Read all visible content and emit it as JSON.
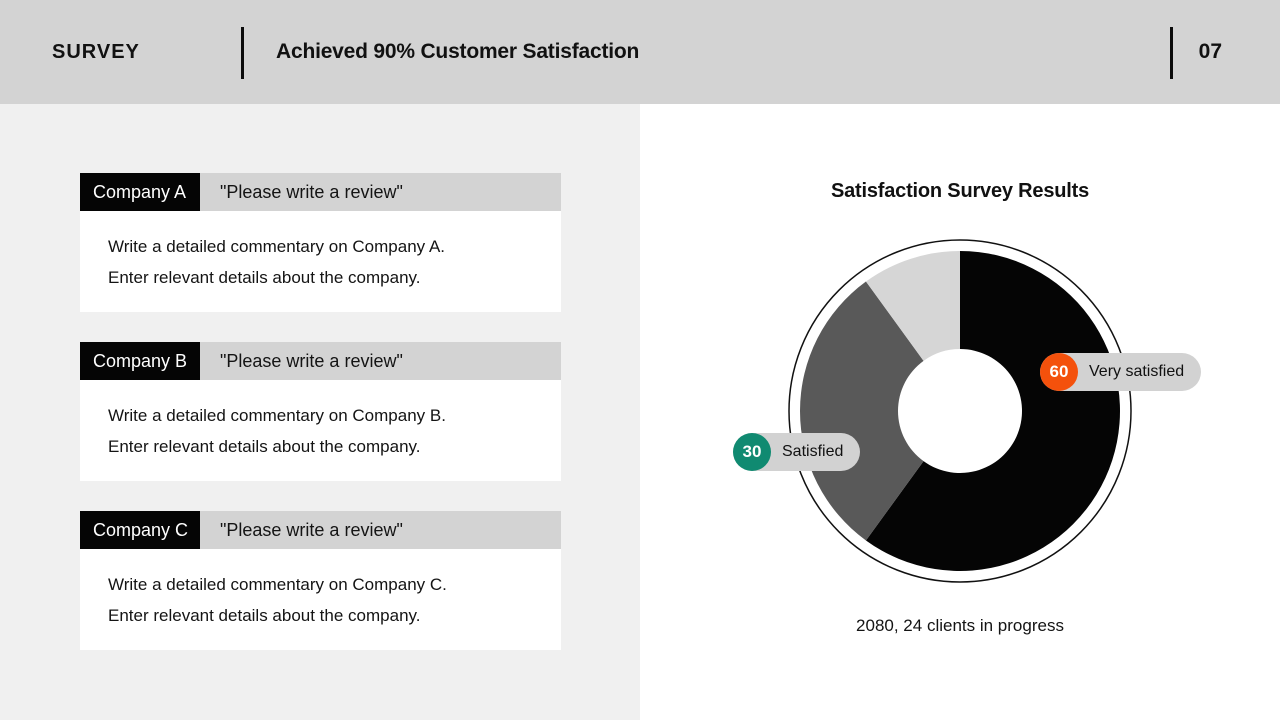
{
  "header": {
    "kicker": "SURVEY",
    "title": "Achieved 90% Customer Satisfaction",
    "page_number": "07"
  },
  "cards": [
    {
      "tab_label": "Company A",
      "prompt": "\"Please write a review\"",
      "body_line1": "Write a detailed commentary on Company A.",
      "body_line2": "Enter relevant details about the company."
    },
    {
      "tab_label": "Company B",
      "prompt": "\"Please write a review\"",
      "body_line1": "Write a detailed commentary on Company B.",
      "body_line2": "Enter relevant details about the company."
    },
    {
      "tab_label": "Company C",
      "prompt": "\"Please write a review\"",
      "body_line1": "Write a detailed commentary on Company C.",
      "body_line2": "Enter relevant details about the company."
    }
  ],
  "chart_data": {
    "type": "pie",
    "variant": "donut",
    "title": "Satisfaction Survey Results",
    "caption": "2080, 24 clients in progress",
    "start_angle_deg": 0,
    "direction": "clockwise",
    "segments": [
      {
        "label": "Very satisfied",
        "value": 60,
        "color": "#050505"
      },
      {
        "label": "Satisfied",
        "value": 30,
        "color": "#595959"
      },
      {
        "label": "",
        "value": 10,
        "color": "#d6d6d6"
      }
    ],
    "annotations": [
      {
        "value": "60",
        "label": "Very satisfied",
        "badge_color": "#f4510c",
        "pill_color": "#d2d2d2"
      },
      {
        "value": "30",
        "label": "Satisfied",
        "badge_color": "#108a71",
        "pill_color": "#d2d2d2"
      }
    ]
  }
}
